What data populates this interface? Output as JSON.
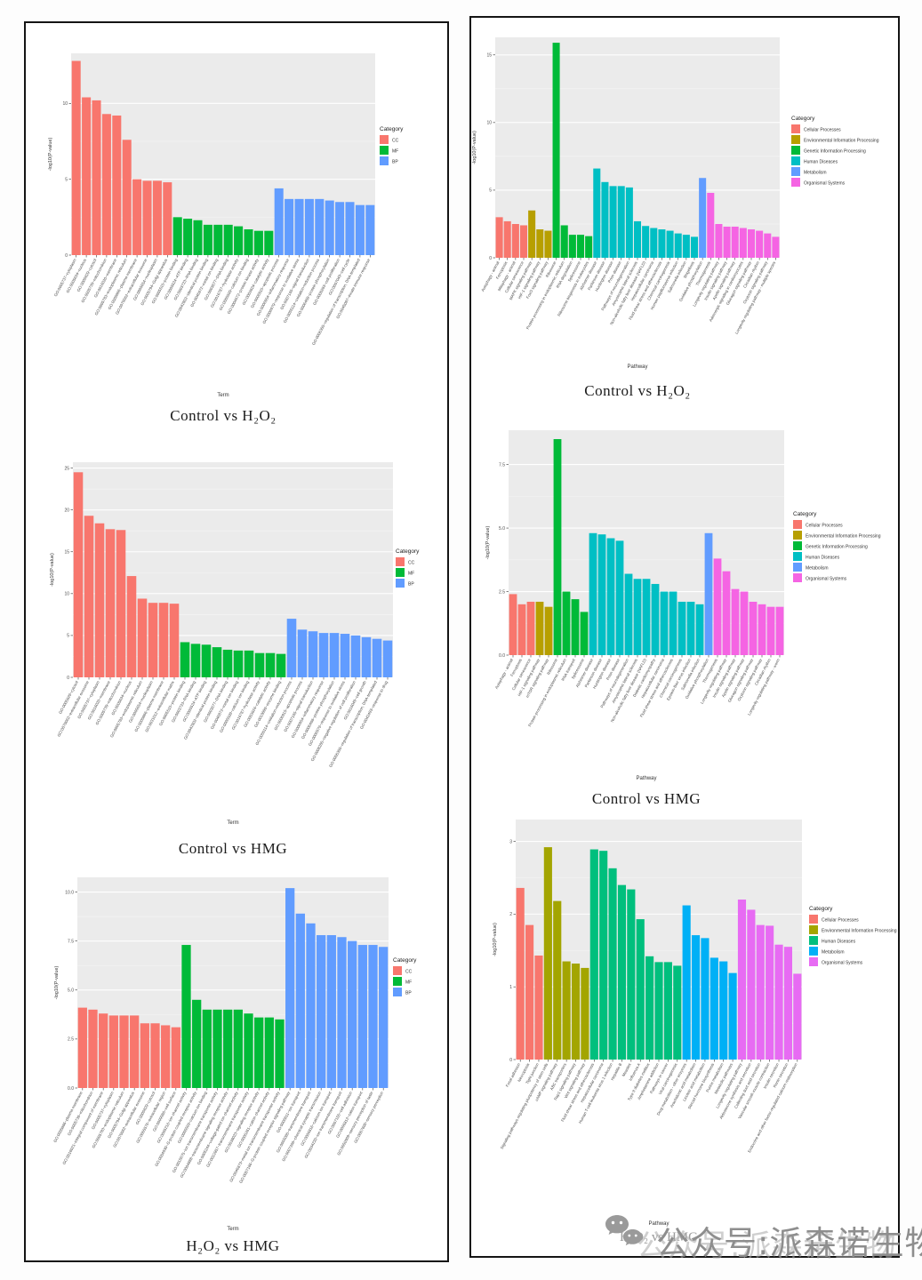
{
  "watermark": {
    "text": "公众号:派森诺生物",
    "icon": "wechat-icon"
  },
  "chart_data": [
    {
      "id": "go-control-vs-h2o2",
      "type": "bar",
      "title": "Control vs H₂O₂",
      "xlabel": "Term",
      "ylabel": "-log10(P-value)",
      "ylim": [
        0,
        13.3
      ],
      "ytick_vals": [
        0,
        5,
        10
      ],
      "ytick_labels": [
        "0",
        "5",
        "10"
      ],
      "grid": true,
      "legend_title": "Category",
      "legend_position": "right",
      "series": [
        {
          "name": "CC",
          "color": "#F8766D",
          "labels": [
            "GO:0005737~cytoplasm",
            "GO:0005634~nucleus",
            "GO:0005829~cytosol",
            "GO:0005739~mitochondrion",
            "GO:0016020~membrane",
            "GO:0005783~endoplasmic reticulum",
            "GO:0005886~plasma membrane",
            "GO:0070062~extracellular exosome",
            "GO:0005654~nucleoplasm",
            "GO:0005794~Golgi apparatus"
          ],
          "values": [
            12.8,
            10.4,
            10.2,
            9.3,
            9.2,
            7.6,
            5.0,
            4.9,
            4.9,
            4.8
          ]
        },
        {
          "name": "MF",
          "color": "#00BA38",
          "labels": [
            "GO:0005515~protein binding",
            "GO:0005524~ATP binding",
            "GO:0003723~RNA binding",
            "GO:0042802~identical protein binding",
            "GO:0046872~metal ion binding",
            "GO:0003677~DNA binding",
            "GO:0016787~hydrolase activity",
            "GO:0005509~calcium ion binding",
            "GO:0004672~protein kinase activity",
            "GO:0003824~catalytic activity"
          ],
          "values": [
            2.5,
            2.4,
            2.3,
            2.0,
            2.0,
            2.0,
            1.9,
            1.7,
            1.6,
            1.6
          ]
        },
        {
          "name": "BP",
          "color": "#619CFF",
          "labels": [
            "GO:0006915~apoptotic process",
            "GO:0006954~inflammatory response",
            "GO:0006979~response to oxidative stress",
            "GO:0007165~signal transduction",
            "GO:0055114~oxidation-reduction process",
            "GO:0006468~protein phosphorylation",
            "GO:0008283~cell proliferation",
            "GO:0007049~cell cycle",
            "GO:0006355~regulation of transcription, DNA-templated",
            "GO:0045087~innate immune response"
          ],
          "values": [
            4.4,
            3.7,
            3.7,
            3.7,
            3.7,
            3.6,
            3.5,
            3.5,
            3.3,
            3.3
          ]
        }
      ]
    },
    {
      "id": "go-control-vs-hmg",
      "type": "bar",
      "title": "Control vs HMG",
      "xlabel": "Term",
      "ylabel": "-log10(P-value)",
      "ylim": [
        0,
        25.7
      ],
      "ytick_vals": [
        0,
        5,
        10,
        15,
        20,
        25
      ],
      "ytick_labels": [
        "0",
        "5",
        "10",
        "15",
        "20",
        "25"
      ],
      "grid": true,
      "legend_title": "Category",
      "legend_position": "right",
      "series": [
        {
          "name": "CC",
          "color": "#F8766D",
          "labels": [
            "GO:0005829~cytosol",
            "GO:0070062~extracellular exosome",
            "GO:0005737~cytoplasm",
            "GO:0016020~membrane",
            "GO:0005739~mitochondrion",
            "GO:0005634~nucleus",
            "GO:0005783~endoplasmic reticulum",
            "GO:0005654~nucleoplasm",
            "GO:0005886~plasma membrane",
            "GO:0031012~extracellular matrix"
          ],
          "values": [
            24.5,
            19.3,
            18.4,
            17.7,
            17.6,
            12.1,
            9.4,
            8.9,
            8.9,
            8.8
          ]
        },
        {
          "name": "MF",
          "color": "#00BA38",
          "labels": [
            "GO:0005515~protein binding",
            "GO:0003723~RNA binding",
            "GO:0005524~ATP binding",
            "GO:0042802~identical protein binding",
            "GO:0003677~DNA binding",
            "GO:0046872~metal ion binding",
            "GO:0005509~calcium ion binding",
            "GO:0016787~hydrolase activity",
            "GO:0003824~catalytic activity",
            "GO:0019899~enzyme binding"
          ],
          "values": [
            4.2,
            4.0,
            3.9,
            3.6,
            3.3,
            3.2,
            3.2,
            2.9,
            2.9,
            2.8
          ]
        },
        {
          "name": "BP",
          "color": "#619CFF",
          "labels": [
            "GO:0055114~oxidation-reduction process",
            "GO:0006915~apoptotic process",
            "GO:0007165~signal transduction",
            "GO:0006954~inflammatory response",
            "GO:0006468~protein phosphorylation",
            "GO:0006979~response to oxidative stress",
            "GO:0008285~negative regulation of cell proliferation",
            "GO:0016049~cell growth",
            "GO:0006355~regulation of transcription, DNA-templated",
            "GO:0042493~response to drug"
          ],
          "values": [
            7.0,
            5.7,
            5.5,
            5.3,
            5.3,
            5.2,
            5.0,
            4.8,
            4.6,
            4.4
          ]
        }
      ]
    },
    {
      "id": "go-h2o2-vs-hmg",
      "type": "bar",
      "title": "H₂O₂ vs HMG",
      "xlabel": "Term",
      "ylabel": "-log10(P-value)",
      "ylim": [
        0,
        10.75
      ],
      "ytick_vals": [
        0,
        2.5,
        5,
        7.5,
        10
      ],
      "ytick_labels": [
        "0.0",
        "2.5",
        "5.0",
        "7.5",
        "10.0"
      ],
      "grid": true,
      "legend_title": "Category",
      "legend_position": "right",
      "series": [
        {
          "name": "CC",
          "color": "#F8766D",
          "labels": [
            "GO:0005886~plasma membrane",
            "GO:0005739~mitochondrion",
            "GO:0016021~integral component of membrane",
            "GO:0005737~cytoplasm",
            "GO:0005783~endoplasmic reticulum",
            "GO:0005794~Golgi apparatus",
            "GO:0070062~extracellular exosome",
            "GO:0005829~cytosol",
            "GO:0005576~extracellular region",
            "GO:0009986~cell surface"
          ],
          "values": [
            4.1,
            4.0,
            3.8,
            3.7,
            3.7,
            3.7,
            3.3,
            3.3,
            3.2,
            3.1
          ]
        },
        {
          "name": "MF",
          "color": "#00BA38",
          "labels": [
            "GO:0005216~ion channel activity",
            "GO:0004930~G-protein coupled receptor activity",
            "GO:0005509~calcium ion binding",
            "GO:0015075~ion transmembrane transporter activity",
            "GO:0004888~transmembrane signaling receptor activity",
            "GO:0005244~voltage-gated ion channel activity",
            "GO:0022857~transmembrane transporter activity",
            "GO:0038023~signaling receptor activity",
            "GO:0005261~cation channel activity",
            "GO:0046873~metal ion transmembrane transporter activity"
          ],
          "values": [
            7.3,
            4.5,
            4.0,
            4.0,
            4.0,
            4.0,
            3.8,
            3.6,
            3.6,
            3.5
          ]
        },
        {
          "name": "BP",
          "color": "#619CFF",
          "labels": [
            "GO:0007186~G-protein coupled receptor signaling pathway",
            "GO:0006811~ion transport",
            "GO:0055085~transmembrane transport",
            "GO:0007268~chemical synaptic transmission",
            "GO:0006816~calcium ion transport",
            "GO:0034220~ion transmembrane transport",
            "GO:0007155~cell adhesion",
            "GO:0006812~cation transport",
            "GO:0050909~sensory perception of taste",
            "GO:0007600~sensory perception"
          ],
          "values": [
            10.2,
            8.9,
            8.4,
            7.8,
            7.8,
            7.7,
            7.5,
            7.3,
            7.3,
            7.2
          ]
        }
      ]
    },
    {
      "id": "kegg-control-vs-h2o2",
      "type": "bar",
      "title": "Control vs H₂O₂",
      "xlabel": "Pathway",
      "ylabel": "-log10(P-value)",
      "ylim": [
        0,
        16.3
      ],
      "ytick_vals": [
        0,
        5,
        10,
        15
      ],
      "ytick_labels": [
        "0",
        "5",
        "10",
        "15"
      ],
      "grid": true,
      "legend_title": "Category",
      "legend_position": "right",
      "series": [
        {
          "name": "Cellular Processes",
          "color": "#F8766D",
          "labels": [
            "Autophagy - animal",
            "Ferroptosis",
            "Mitophagy - animal",
            "Cellular senescence"
          ],
          "values": [
            3.0,
            2.7,
            2.5,
            2.4
          ]
        },
        {
          "name": "Environmental Information Processing",
          "color": "#B79F00",
          "labels": [
            "MAPK signaling pathway",
            "HIF-1 signaling pathway",
            "FoxO signaling pathway"
          ],
          "values": [
            3.5,
            2.1,
            2.0
          ]
        },
        {
          "name": "Genetic Information Processing",
          "color": "#00BA38",
          "labels": [
            "Ribosome",
            "Protein processing in endoplasmic reticulum",
            "RNA degradation",
            "Spliceosome",
            "Ribosome biogenesis in eukaryotes"
          ],
          "values": [
            15.9,
            2.4,
            1.7,
            1.7,
            1.6
          ]
        },
        {
          "name": "Human Diseases",
          "color": "#00BFC4",
          "labels": [
            "Alzheimer disease",
            "Parkinson disease",
            "Huntington disease",
            "Prion disease",
            "Pathways of neurodegeneration",
            "Amyotrophic lateral sclerosis",
            "Non-alcoholic fatty liver disease (NAFLD)",
            "Hepatocellular carcinoma",
            "Fluid shear stress and atherosclerosis",
            "Chemical carcinogenesis",
            "Human papillomavirus infection",
            "Salmonella infection",
            "Shigellosis"
          ],
          "values": [
            6.6,
            5.6,
            5.3,
            5.3,
            5.2,
            2.7,
            2.35,
            2.2,
            2.1,
            2.0,
            1.8,
            1.7,
            1.55
          ]
        },
        {
          "name": "Metabolism",
          "color": "#619CFF",
          "labels": [
            "Oxidative phosphorylation"
          ],
          "values": [
            5.9
          ]
        },
        {
          "name": "Organismal Systems",
          "color": "#F564E3",
          "labels": [
            "Thermogenesis",
            "Longevity regulating pathway",
            "Insulin signaling pathway",
            "Apelin signaling pathway",
            "Adrenergic signaling in cardiomyocytes",
            "Glucagon signaling pathway",
            "Circadian rhythm",
            "Oxytocin signaling pathway",
            "Longevity regulating pathway - multiple species"
          ],
          "values": [
            4.8,
            2.5,
            2.3,
            2.3,
            2.2,
            2.1,
            2.0,
            1.8,
            1.55
          ]
        }
      ]
    },
    {
      "id": "kegg-control-vs-hmg",
      "type": "bar",
      "title": "Control vs HMG",
      "xlabel": "Pathway",
      "ylabel": "-log10(P-value)",
      "ylim": [
        0,
        8.85
      ],
      "ytick_vals": [
        0,
        2.5,
        5,
        7.5
      ],
      "ytick_labels": [
        "0.0",
        "2.5",
        "5.0",
        "7.5"
      ],
      "grid": true,
      "legend_title": "Category",
      "legend_position": "right",
      "series": [
        {
          "name": "Cellular Processes",
          "color": "#F8766D",
          "labels": [
            "Autophagy - animal",
            "Ferroptosis",
            "Cellular senescence"
          ],
          "values": [
            2.4,
            2.0,
            2.1
          ]
        },
        {
          "name": "Environmental Information Processing",
          "color": "#B79F00",
          "labels": [
            "HIF-1 signaling pathway",
            "mTOR signaling pathway"
          ],
          "values": [
            2.1,
            1.9
          ]
        },
        {
          "name": "Genetic Information Processing",
          "color": "#00BA38",
          "labels": [
            "Ribosome",
            "Protein processing in endoplasmic reticulum",
            "RNA transport",
            "Spliceosome"
          ],
          "values": [
            8.5,
            2.5,
            2.2,
            1.7
          ]
        },
        {
          "name": "Human Diseases",
          "color": "#00BFC4",
          "labels": [
            "Alzheimer disease",
            "Parkinson disease",
            "Huntington disease",
            "Prion disease",
            "Pathways of neurodegeneration",
            "Amyotrophic lateral sclerosis",
            "Non-alcoholic fatty liver disease (NAFLD)",
            "Diabetic cardiomyopathy",
            "Hepatocellular carcinoma",
            "Fluid shear stress and atherosclerosis",
            "Chemical carcinogenesis",
            "Epstein-Barr virus infection",
            "Salmonella infection"
          ],
          "values": [
            4.8,
            4.75,
            4.6,
            4.5,
            3.2,
            3.0,
            3.0,
            2.8,
            2.5,
            2.5,
            2.1,
            2.1,
            2.0
          ]
        },
        {
          "name": "Metabolism",
          "color": "#619CFF",
          "labels": [
            "Oxidative phosphorylation"
          ],
          "values": [
            4.8
          ]
        },
        {
          "name": "Organismal Systems",
          "color": "#F564E3",
          "labels": [
            "Thermogenesis",
            "Longevity regulating pathway",
            "Insulin signaling pathway",
            "Apelin signaling pathway",
            "Glucagon signaling pathway",
            "Oxytocin signaling pathway",
            "Circadian rhythm",
            "Longevity regulating pathway - worm"
          ],
          "values": [
            3.8,
            3.3,
            2.6,
            2.5,
            2.1,
            2.0,
            1.9,
            1.9
          ]
        }
      ]
    },
    {
      "id": "kegg-h2o2-vs-hmg",
      "type": "bar",
      "title": "H₂O₂ vs HMG",
      "xlabel": "Pathway",
      "ylabel": "-log10(P-value)",
      "ylim": [
        0,
        3.3
      ],
      "ytick_vals": [
        0,
        1,
        2,
        3
      ],
      "ytick_labels": [
        "0",
        "1",
        "2",
        "3"
      ],
      "grid": true,
      "legend_title": "Category",
      "legend_position": "right",
      "series": [
        {
          "name": "Cellular Processes",
          "color": "#F8766D",
          "labels": [
            "Focal adhesion",
            "Necroptosis",
            "Tight junction"
          ],
          "values": [
            2.36,
            1.85,
            1.43
          ]
        },
        {
          "name": "Environmental Information Processing",
          "color": "#A3A500",
          "labels": [
            "Signaling pathways regulating pluripotency of stem cells",
            "cAMP signaling pathway",
            "ABC transporters",
            "Rap1 signaling pathway",
            "Wnt signaling pathway"
          ],
          "values": [
            2.92,
            2.18,
            1.35,
            1.32,
            1.26
          ]
        },
        {
          "name": "Human Diseases",
          "color": "#00BF7D",
          "labels": [
            "Fluid shear stress and atherosclerosis",
            "Hepatocellular carcinoma",
            "Human T-cell leukemia virus 1 infection",
            "Hepatitis B",
            "Measles",
            "Influenza A",
            "Type II diabetes mellitus",
            "Amphetamine addiction",
            "Pathways in cancer",
            "Viral carcinogenesis"
          ],
          "values": [
            2.89,
            2.87,
            2.63,
            2.4,
            2.34,
            1.93,
            1.42,
            1.34,
            1.34,
            1.29
          ]
        },
        {
          "name": "Metabolism",
          "color": "#00B0F6",
          "labels": [
            "Drug metabolism - other enzymes",
            "Arachidonic acid metabolism",
            "Linoleic acid metabolism",
            "Steroid hormone biosynthesis",
            "Purine metabolism",
            "Metabolic pathways"
          ],
          "values": [
            2.12,
            1.71,
            1.67,
            1.4,
            1.35,
            1.19
          ]
        },
        {
          "name": "Organismal Systems",
          "color": "#E76BF3",
          "labels": [
            "Longevity regulating pathway",
            "Aldosterone synthesis and secretion",
            "Collecting duct acid secretion",
            "Vascular smooth muscle contraction",
            "Insulin secretion",
            "Renin secretion",
            "Endocrine and other factor-regulated calcium reabsorption"
          ],
          "values": [
            2.2,
            2.06,
            1.85,
            1.84,
            1.58,
            1.55,
            1.18
          ]
        }
      ]
    }
  ]
}
